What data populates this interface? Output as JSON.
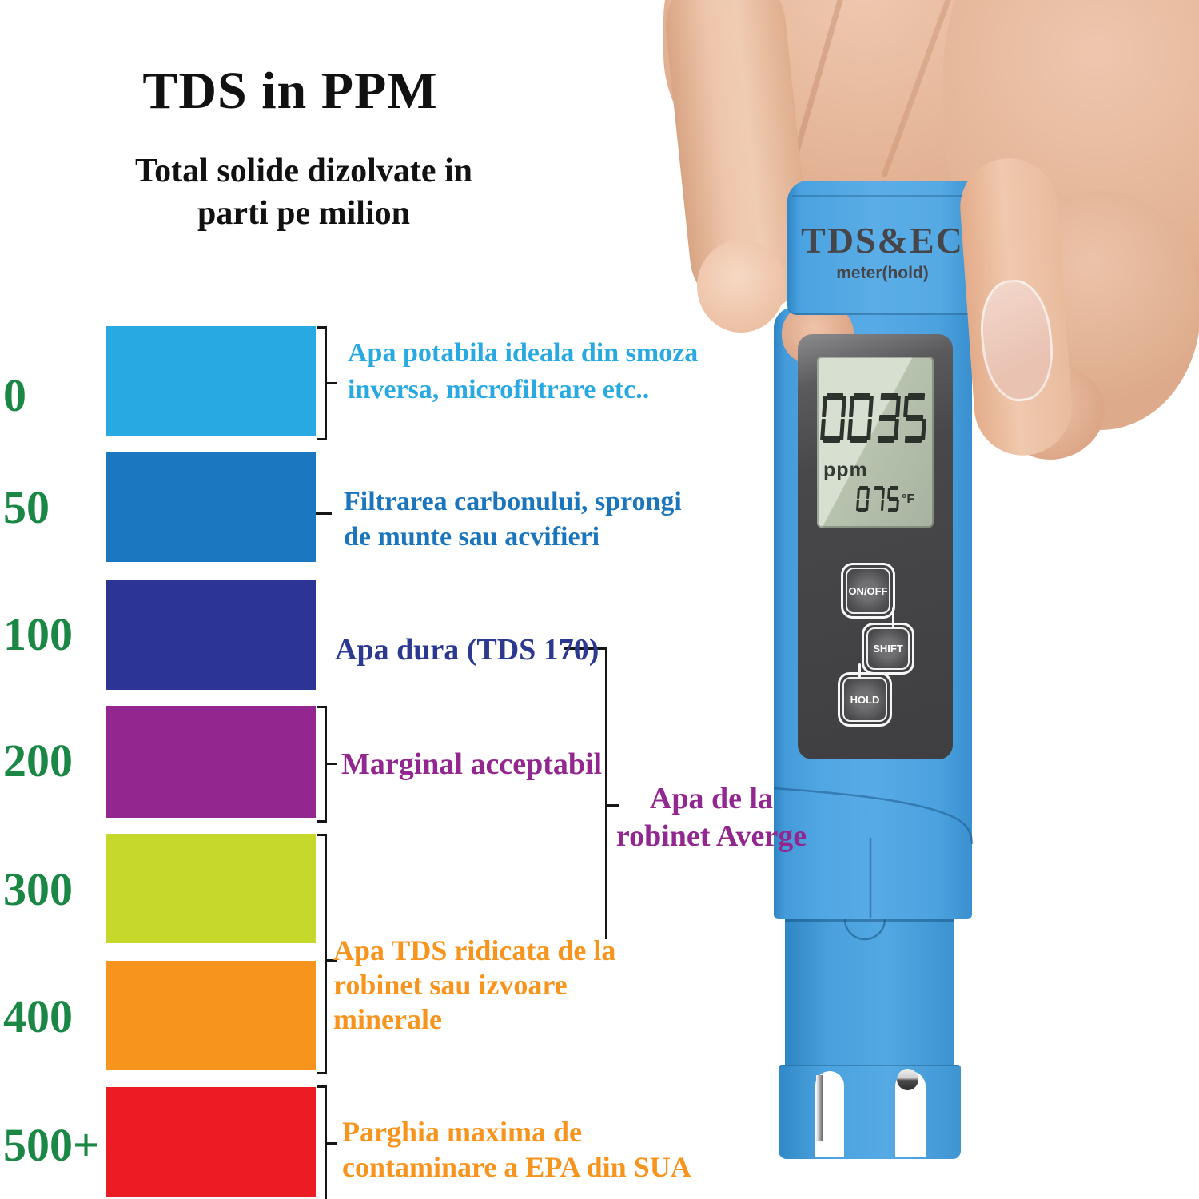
{
  "title": "TDS in PPM",
  "subtitle": {
    "line1": "Total solide dizolvate in",
    "line2": "parti pe milion"
  },
  "scale": {
    "label_color": "#1a8745",
    "rows": [
      {
        "label": "0",
        "bar_color": "#29a9e1"
      },
      {
        "label": "50",
        "bar_color": "#1b77c0"
      },
      {
        "label": "100",
        "bar_color": "#2c3494"
      },
      {
        "label": "200",
        "bar_color": "#93278f"
      },
      {
        "label": "300",
        "bar_color": "#c6d82c"
      },
      {
        "label": "400",
        "bar_color": "#f7941e"
      },
      {
        "label": "500+",
        "bar_color": "#ec1c24"
      }
    ]
  },
  "descriptions": {
    "ideal": {
      "color": "#29a9e1",
      "line1": "Apa potabila ideala din smoza",
      "line2": "inversa, microfiltrare etc.."
    },
    "filtered": {
      "color": "#1b75bc",
      "line1": "Filtrarea carbonului, sprongi",
      "line2": "de munte sau acvifieri"
    },
    "hard_water": {
      "color": "#2b3990",
      "text": "Apa dura (TDS 170)"
    },
    "marginal": {
      "color": "#92278f",
      "text": "Marginal acceptabil"
    },
    "tap_average": {
      "color": "#92278f",
      "line1": "Apa de la",
      "line2": "robinet Averge"
    },
    "high_tds": {
      "color": "#f7941e",
      "line1": "Apa TDS ridicata de la",
      "line2": "robinet sau izvoare",
      "line3": "minerale"
    },
    "epa_max": {
      "color": "#f7941e",
      "line1": "Parghia maxima de",
      "line2": "contaminare a EPA din SUA"
    }
  },
  "device": {
    "body_color": "#4aa0de",
    "brand": "TDS&EC",
    "brand_sub": "meter(hold)",
    "lcd": {
      "reading": "0035",
      "reading_unit": "ppm",
      "temperature": "075",
      "temperature_unit": "°F"
    },
    "buttons": [
      {
        "label": "ON/OFF"
      },
      {
        "label": "SHIFT"
      },
      {
        "label": "HOLD"
      }
    ]
  }
}
